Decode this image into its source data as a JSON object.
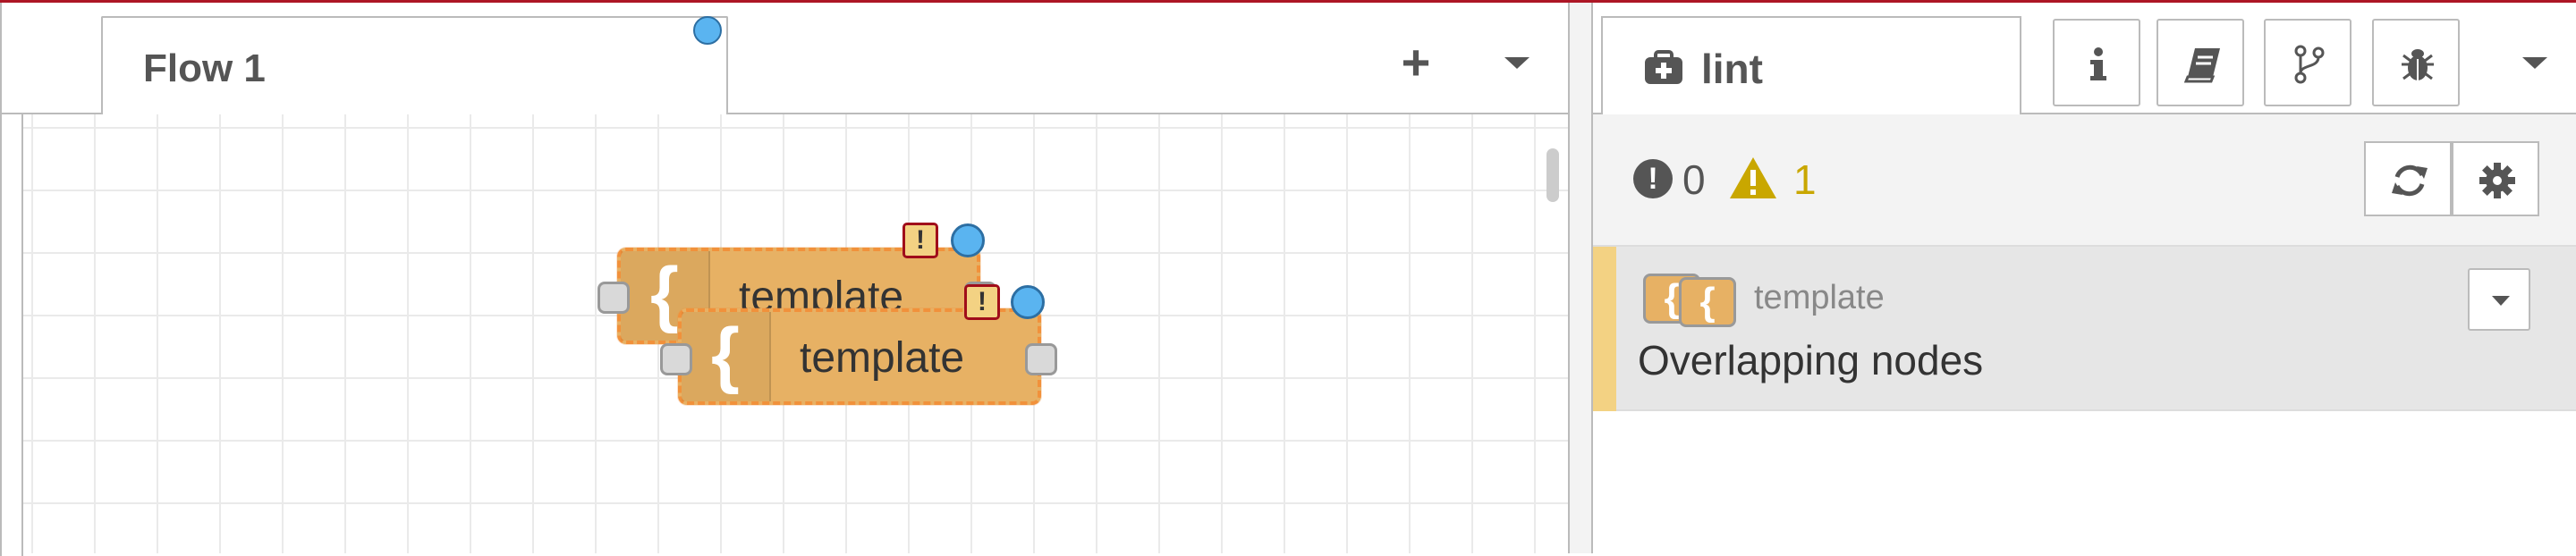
{
  "workspace": {
    "flow_tab": {
      "label": "Flow 1"
    },
    "add_flow_icon": "+",
    "flow_list_icon": "chevron-down-icon",
    "nodes": [
      {
        "label": "template",
        "icon": "{"
      },
      {
        "label": "template",
        "icon": "{"
      }
    ],
    "warning_glyph": "!"
  },
  "sidebar": {
    "active_tab": {
      "label": "lint",
      "icon": "lint-icon"
    },
    "tab_buttons": [
      "info-icon",
      "book-icon",
      "branch-icon",
      "bug-icon"
    ],
    "menu_icon": "chevron-down-icon",
    "lint": {
      "error_glyph": "!",
      "error_count": "0",
      "warning_count": "1",
      "refresh_icon": "refresh-icon",
      "settings_icon": "gear-icon",
      "items": [
        {
          "node_type": "template",
          "icon": "{",
          "message": "Overlapping nodes"
        }
      ]
    }
  },
  "colors": {
    "node_fill": "#e7b164",
    "node_selected_border": "#f1913b",
    "changed_dot": "#5ab4f0",
    "warning_yellow": "#c9a700",
    "warning_bar": "#f3d283"
  }
}
